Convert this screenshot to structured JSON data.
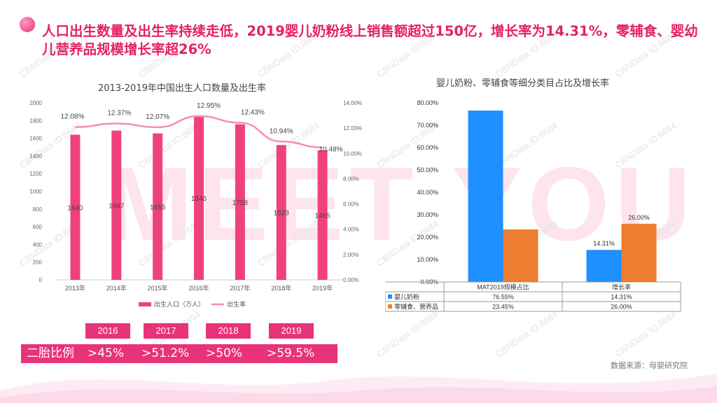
{
  "title": "人口出生数量及出生率持续走低，2019婴儿奶粉线上销售额超过150亿，增长率为14.31%，零辅食、婴幼儿营养品规模增长率超26%",
  "background_text": "MEET YOU",
  "watermark": "CBNData ID:8684",
  "colors": {
    "accent": "#e8327a",
    "pink_bar": "#f0417f",
    "pink_line": "#f58cb6",
    "blue": "#1e90ff",
    "orange": "#ed7d31"
  },
  "chart_data": [
    {
      "type": "bar+line",
      "title": "2013-2019年中国出生人口数量及出生率",
      "categories": [
        "2013年",
        "2014年",
        "2015年",
        "2016年",
        "2017年",
        "2018年",
        "2019年"
      ],
      "series": [
        {
          "name": "出生人口（万人）",
          "kind": "bar",
          "axis": "left",
          "values": [
            1640,
            1687,
            1655,
            1846,
            1758,
            1523,
            1465
          ],
          "labels": [
            "1640",
            "1687",
            "1655",
            "1846",
            "1758",
            "1523",
            "1465"
          ]
        },
        {
          "name": "出生率",
          "kind": "line",
          "axis": "right",
          "values": [
            12.08,
            12.37,
            12.07,
            12.95,
            12.43,
            10.94,
            10.48
          ],
          "labels": [
            "12.08%",
            "12.37%",
            "12.07%",
            "12.95%",
            "12.43%",
            "10.94%",
            "10.48%"
          ]
        }
      ],
      "ylim_left": [
        0,
        2000
      ],
      "yticks_left": [
        "0",
        "200",
        "400",
        "600",
        "800",
        "1000",
        "1200",
        "1400",
        "1600",
        "1800",
        "2000"
      ],
      "ylim_right": [
        0,
        14
      ],
      "yticks_right": [
        "0.00%",
        "2.00%",
        "4.00%",
        "6.00%",
        "8.00%",
        "10.00%",
        "12.00%",
        "14.00%"
      ],
      "legend": [
        "出生人口（万人）",
        "出生率"
      ],
      "legend_position": "bottom"
    },
    {
      "type": "bar",
      "title": "婴儿奶粉、零辅食等细分类目占比及增长率",
      "categories": [
        "MAT2019规模占比",
        "增长率"
      ],
      "series": [
        {
          "name": "婴儿奶粉",
          "values": [
            76.55,
            14.31
          ],
          "labels": [
            "76.55%",
            "14.31%"
          ]
        },
        {
          "name": "零辅食、营养品",
          "values": [
            23.45,
            26.0
          ],
          "labels": [
            "23.45%",
            "26.00%"
          ]
        }
      ],
      "visible_data_labels": [
        "",
        "14.31%",
        "",
        "26.00%"
      ],
      "ylim": [
        0,
        80
      ],
      "yticks": [
        "0.00%",
        "10.00%",
        "20.00%",
        "30.00%",
        "40.00%",
        "50.00%",
        "60.00%",
        "70.00%",
        "80.00%"
      ],
      "has_data_table": true
    }
  ],
  "second_child": {
    "label": "二胎比例",
    "years": [
      "2016",
      "2017",
      "2018",
      "2019"
    ],
    "values": [
      ">45%",
      ">51.2%",
      ">50%",
      ">59.5%"
    ]
  },
  "source": "数据来源：母婴研究院"
}
